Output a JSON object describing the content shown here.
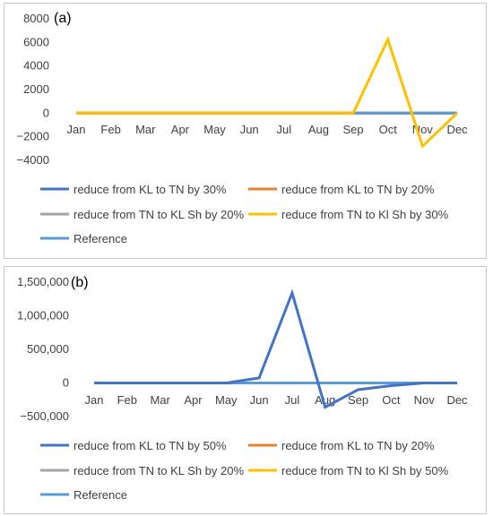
{
  "chart_data": [
    {
      "type": "line",
      "panel_label": "(a)",
      "categories": [
        "Jan",
        "Feb",
        "Mar",
        "Apr",
        "May",
        "Jun",
        "Jul",
        "Aug",
        "Sep",
        "Oct",
        "Nov",
        "Dec"
      ],
      "ylim": [
        -4000,
        8000
      ],
      "yticks": [
        -4000,
        -2000,
        0,
        2000,
        4000,
        6000,
        8000
      ],
      "ytick_labels": [
        "−4000",
        "−2000",
        "0",
        "2000",
        "4000",
        "6000",
        "8000"
      ],
      "grid": false,
      "legend_position": "bottom",
      "series": [
        {
          "name": "reduce  from KL to TN by 30%",
          "color": "#4472C4",
          "values": [
            0,
            0,
            0,
            0,
            0,
            0,
            0,
            0,
            0,
            0,
            0,
            0
          ]
        },
        {
          "name": "reduce from KL  to TN  by 20%",
          "color": "#ED7D31",
          "values": [
            0,
            0,
            0,
            0,
            0,
            0,
            0,
            0,
            0,
            0,
            0,
            0
          ]
        },
        {
          "name": "reduce from TN  to KL Sh by 20%",
          "color": "#A5A5A5",
          "values": [
            0,
            0,
            0,
            0,
            0,
            0,
            0,
            0,
            0,
            0,
            0,
            0
          ]
        },
        {
          "name": "reduce from TN to Kl Sh by 30%",
          "color": "#FFC000",
          "values": [
            0,
            0,
            0,
            0,
            0,
            0,
            0,
            0,
            0,
            6250,
            -2800,
            0
          ]
        },
        {
          "name": "Reference",
          "color": "#5B9BD5",
          "values": [
            0,
            0,
            0,
            0,
            0,
            0,
            0,
            0,
            0,
            0,
            0,
            0
          ]
        }
      ]
    },
    {
      "type": "line",
      "panel_label": "(b)",
      "categories": [
        "Jan",
        "Feb",
        "Mar",
        "Apr",
        "May",
        "Jun",
        "Jul",
        "Aug",
        "Sep",
        "Oct",
        "Nov",
        "Dec"
      ],
      "ylim": [
        -500000,
        1500000
      ],
      "yticks": [
        -500000,
        0,
        500000,
        1000000,
        1500000
      ],
      "ytick_labels": [
        "−500,000",
        "0",
        "500,000",
        "1,000,000",
        "1,500,000"
      ],
      "grid": false,
      "legend_position": "bottom",
      "series": [
        {
          "name": "reduce  from KL to TN by 50%",
          "color": "#4472C4",
          "values": [
            0,
            0,
            0,
            0,
            0,
            75000,
            1340000,
            -360000,
            -100000,
            -40000,
            0,
            0
          ]
        },
        {
          "name": "reduce from KL  to TN  by 20%",
          "color": "#ED7D31",
          "values": [
            0,
            0,
            0,
            0,
            0,
            0,
            0,
            0,
            0,
            0,
            0,
            0
          ]
        },
        {
          "name": "reduce from TN  to KL Sh by 20%",
          "color": "#A5A5A5",
          "values": [
            0,
            0,
            0,
            0,
            0,
            0,
            0,
            0,
            0,
            0,
            0,
            0
          ]
        },
        {
          "name": "reduce from TN to Kl Sh by 50%",
          "color": "#FFC000",
          "values": [
            0,
            0,
            0,
            0,
            0,
            0,
            0,
            0,
            0,
            0,
            0,
            0
          ]
        },
        {
          "name": "Reference",
          "color": "#5B9BD5",
          "values": [
            0,
            0,
            0,
            0,
            0,
            0,
            0,
            0,
            0,
            0,
            0,
            0
          ]
        }
      ]
    }
  ]
}
